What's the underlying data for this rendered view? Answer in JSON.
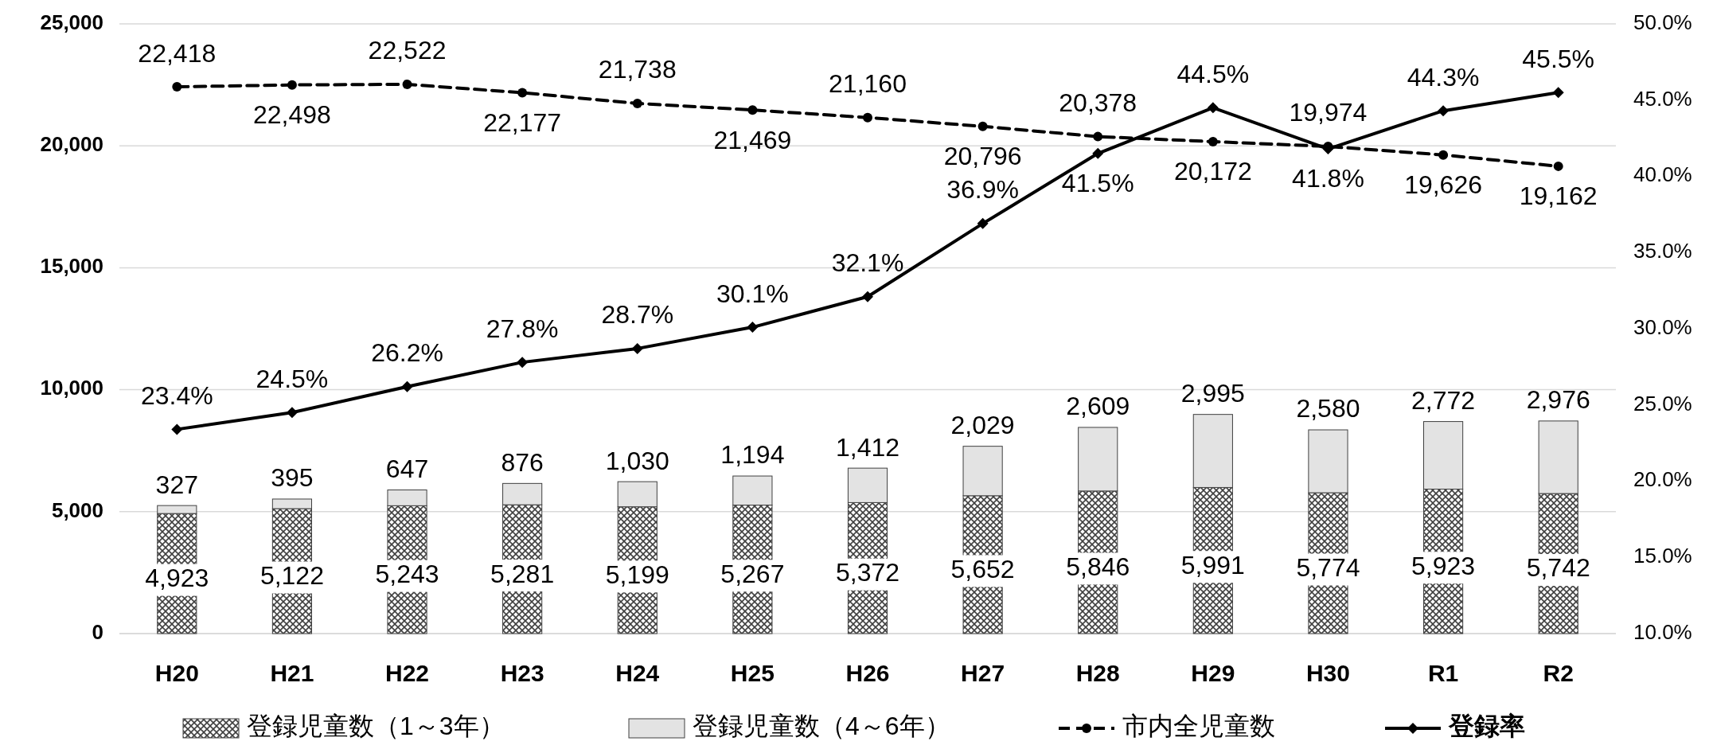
{
  "chart_data": {
    "type": "bar",
    "stacked": true,
    "categories": [
      "H20",
      "H21",
      "H22",
      "H23",
      "H24",
      "H25",
      "H26",
      "H27",
      "H28",
      "H29",
      "H30",
      "R1",
      "R2"
    ],
    "series": [
      {
        "name": "登録児童数（1～3年）",
        "color": "#404040",
        "values": [
          4923,
          5122,
          5243,
          5281,
          5199,
          5267,
          5372,
          5652,
          5846,
          5991,
          5774,
          5923,
          5742
        ],
        "value_labels": [
          "4,923",
          "5,122",
          "5,243",
          "5,281",
          "5,199",
          "5,267",
          "5,372",
          "5,652",
          "5,846",
          "5,991",
          "5,774",
          "5,923",
          "5,742"
        ]
      },
      {
        "name": "登録児童数（4～6年）",
        "color": "#e3e3e3",
        "values": [
          327,
          395,
          647,
          876,
          1030,
          1194,
          1412,
          2029,
          2609,
          2995,
          2580,
          2772,
          2976
        ],
        "value_labels": [
          "327",
          "395",
          "647",
          "876",
          "1,030",
          "1,194",
          "1,412",
          "2,029",
          "2,609",
          "2,995",
          "2,580",
          "2,772",
          "2,976"
        ]
      },
      {
        "name": "市内全児童数",
        "type": "line",
        "color": "#000000",
        "line_style": "dashed",
        "marker": "circle",
        "values": [
          22418,
          22498,
          22522,
          22177,
          21738,
          21469,
          21160,
          20796,
          20378,
          20172,
          19974,
          19626,
          19162
        ],
        "value_labels": [
          "22,418",
          "22,498",
          "22,522",
          "22,177",
          "21,738",
          "21,469",
          "21,160",
          "20,796",
          "20,378",
          "20,172",
          "19,974",
          "19,626",
          "19,162"
        ]
      },
      {
        "name": "登録率",
        "type": "line",
        "axis": "y2",
        "color": "#000000",
        "line_style": "solid",
        "marker": "diamond",
        "values": [
          23.4,
          24.5,
          26.2,
          27.8,
          28.7,
          30.1,
          32.1,
          36.9,
          41.5,
          44.5,
          41.8,
          44.3,
          45.5
        ],
        "value_labels": [
          "23.4%",
          "24.5%",
          "26.2%",
          "27.8%",
          "28.7%",
          "30.1%",
          "32.1%",
          "36.9%",
          "41.5%",
          "44.5%",
          "41.8%",
          "44.3%",
          "45.5%"
        ]
      }
    ],
    "ylim": [
      0,
      25000
    ],
    "yticks": [
      0,
      {
        "value": 5000,
        "label": "5,000"
      },
      {
        "value": 10000,
        "label": "10,000"
      },
      {
        "value": 15000,
        "label": "15,000"
      },
      {
        "value": 20000,
        "label": "20,000"
      },
      {
        "value": 25000,
        "label": "25,000"
      }
    ],
    "y2lim": [
      10,
      50
    ],
    "y2ticks": [
      {
        "value": 10,
        "label": "10.0%"
      },
      {
        "value": 15,
        "label": "15.0%"
      },
      {
        "value": 20,
        "label": "20.0%"
      },
      {
        "value": 25,
        "label": "25.0%"
      },
      {
        "value": 30,
        "label": "30.0%"
      },
      {
        "value": 35,
        "label": "35.0%"
      },
      {
        "value": 40,
        "label": "40.0%"
      },
      {
        "value": 45,
        "label": "45.0%"
      },
      {
        "value": 50,
        "label": "50.0%"
      }
    ],
    "grid": "y",
    "legend": "bottom"
  }
}
